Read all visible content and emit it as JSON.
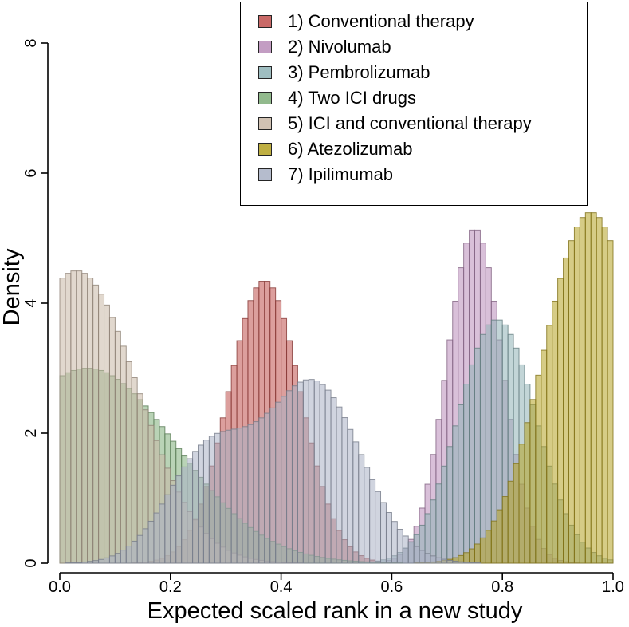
{
  "chart_data": {
    "type": "histogram",
    "title": "",
    "xlabel": "Expected scaled rank in a new study",
    "ylabel": "Density",
    "xlim": [
      0.0,
      1.0
    ],
    "ylim": [
      0,
      8
    ],
    "x_ticks": [
      "0.0",
      "0.2",
      "0.4",
      "0.6",
      "0.8",
      "1.0"
    ],
    "y_ticks": [
      "0",
      "2",
      "4",
      "6",
      "8"
    ],
    "bin_width": 0.01,
    "legend_position": "top-right",
    "series": [
      {
        "name": "1) Conventional therapy",
        "color": "#c0504d",
        "peaks": [
          {
            "center": 0.37,
            "sd": 0.065,
            "height": 4.35
          }
        ]
      },
      {
        "name": "2) Nivolumab",
        "color": "#b98db9",
        "peaks": [
          {
            "center": 0.75,
            "sd": 0.05,
            "height": 5.15
          }
        ]
      },
      {
        "name": "3) Pembrolizumab",
        "color": "#8fb3b7",
        "peaks": [
          {
            "center": 0.79,
            "sd": 0.07,
            "height": 3.75
          }
        ]
      },
      {
        "name": "4) Two ICI drugs",
        "color": "#7fae7a",
        "peaks": [
          {
            "center": 0.05,
            "sd": 0.16,
            "height": 3.0
          }
        ]
      },
      {
        "name": "5) ICI and conventional therapy",
        "color": "#c9b8a6",
        "peaks": [
          {
            "center": 0.03,
            "sd": 0.11,
            "height": 4.5
          }
        ]
      },
      {
        "name": "6) Atezolizumab",
        "color": "#b5a222",
        "peaks": [
          {
            "center": 0.96,
            "sd": 0.085,
            "height": 5.4
          }
        ]
      },
      {
        "name": "7) Ipilimumab",
        "color": "#a9b1c5",
        "peaks": [
          {
            "center": 0.27,
            "sd": 0.075,
            "height": 1.7
          },
          {
            "center": 0.46,
            "sd": 0.085,
            "height": 2.75
          }
        ]
      }
    ]
  }
}
